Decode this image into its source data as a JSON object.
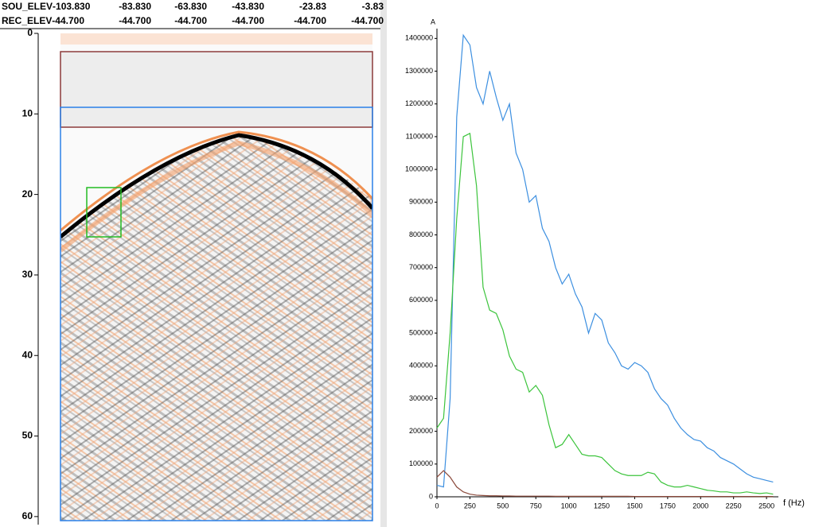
{
  "header": {
    "sou_label": "SOU_ELEV",
    "sou_values": [
      "-103.830",
      "-83.830",
      "-63.830",
      "-43.830",
      "-23.83",
      "-3.83"
    ],
    "rec_label": "REC_ELEV",
    "rec_values": [
      "-44.700",
      "-44.700",
      "-44.700",
      "-44.700",
      "-44.700",
      "-44.700"
    ]
  },
  "section": {
    "ylim": [
      0,
      61
    ],
    "yticks": [
      0,
      10,
      20,
      30,
      40,
      50,
      60
    ]
  },
  "chart_data": {
    "type": "line",
    "y_label": "A",
    "x_label": "f (Hz)",
    "xlim": [
      0,
      2590
    ],
    "ylim": [
      0,
      1430000
    ],
    "xticks": [
      0,
      250,
      500,
      750,
      1000,
      1250,
      1500,
      1750,
      2000,
      2250,
      2500
    ],
    "yticks": [
      0,
      100000,
      200000,
      300000,
      400000,
      500000,
      600000,
      700000,
      800000,
      900000,
      1000000,
      1100000,
      1200000,
      1300000,
      1400000
    ],
    "x": [
      0,
      50,
      100,
      150,
      200,
      250,
      300,
      350,
      400,
      450,
      500,
      550,
      600,
      650,
      700,
      750,
      800,
      850,
      900,
      950,
      1000,
      1050,
      1100,
      1150,
      1200,
      1250,
      1300,
      1350,
      1400,
      1450,
      1500,
      1550,
      1600,
      1650,
      1700,
      1750,
      1800,
      1850,
      1900,
      1950,
      2000,
      2050,
      2100,
      2150,
      2200,
      2250,
      2300,
      2350,
      2400,
      2450,
      2500,
      2550
    ],
    "series": [
      {
        "color": "#3c8fe0",
        "values": [
          35000,
          30000,
          300000,
          1160000,
          1410000,
          1380000,
          1250000,
          1200000,
          1300000,
          1220000,
          1150000,
          1200000,
          1050000,
          1000000,
          900000,
          920000,
          820000,
          780000,
          700000,
          650000,
          680000,
          620000,
          580000,
          500000,
          560000,
          540000,
          470000,
          440000,
          400000,
          390000,
          410000,
          400000,
          380000,
          330000,
          300000,
          280000,
          240000,
          210000,
          190000,
          175000,
          170000,
          150000,
          140000,
          120000,
          110000,
          100000,
          85000,
          70000,
          60000,
          55000,
          50000,
          45000
        ]
      },
      {
        "color": "#3cc43c",
        "values": [
          210000,
          240000,
          500000,
          850000,
          1100000,
          1110000,
          950000,
          640000,
          570000,
          560000,
          510000,
          430000,
          390000,
          380000,
          320000,
          340000,
          310000,
          220000,
          150000,
          160000,
          190000,
          160000,
          130000,
          125000,
          125000,
          120000,
          100000,
          80000,
          70000,
          65000,
          65000,
          65000,
          75000,
          70000,
          45000,
          35000,
          30000,
          30000,
          35000,
          30000,
          25000,
          20000,
          18000,
          15000,
          15000,
          12000,
          12000,
          15000,
          12000,
          10000,
          12000,
          8000
        ]
      },
      {
        "color": "#8b4a3c",
        "values": [
          60000,
          80000,
          60000,
          30000,
          15000,
          8000,
          5000,
          4000,
          3000,
          3000,
          2500,
          2500,
          2000,
          2000,
          2000,
          2000,
          2000,
          2000,
          1500,
          1500,
          1500,
          1500,
          1500,
          1500,
          1500,
          1500,
          1500,
          1500,
          1500,
          1500,
          1000,
          1000,
          1000,
          1000,
          1000,
          1000,
          1000,
          1000,
          1000,
          1000,
          1000,
          1000,
          1000,
          1000,
          1000,
          1000,
          1000,
          1000,
          1000,
          1000,
          1000,
          1000
        ]
      }
    ]
  }
}
